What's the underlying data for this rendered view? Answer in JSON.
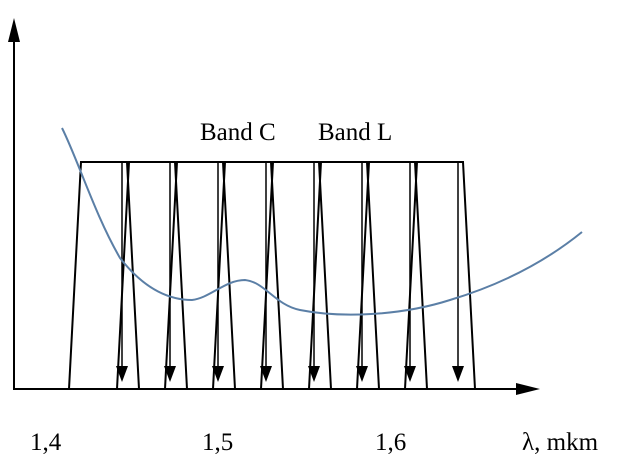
{
  "figure": {
    "band_labels": [
      "Band C",
      "Band L"
    ],
    "x_tick_labels": [
      "1,4",
      "1,5",
      "1,6"
    ],
    "x_axis_label": "λ, mkm",
    "channel_count": 8,
    "colors": {
      "axes": "#000000",
      "channels": "#000000",
      "loss_curve": "#5b7fa6"
    }
  }
}
